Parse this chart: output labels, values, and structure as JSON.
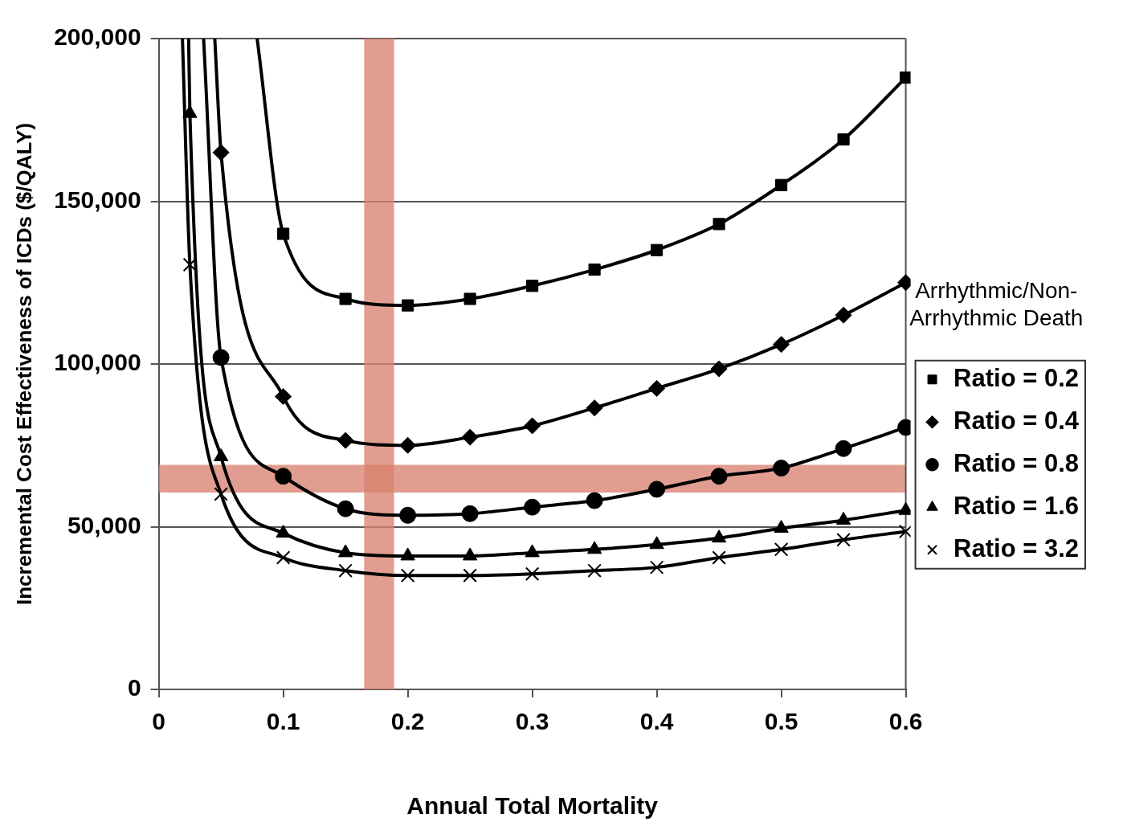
{
  "chart_data": {
    "type": "line",
    "xlabel": "Annual Total Mortality",
    "ylabel": "Incremental Cost Effectiveness of ICDs ($/QALY)",
    "legend_title": "Arrhythmic/Non-Arrhythmic Death",
    "legend": "right",
    "grid": "y",
    "line_style": "solid",
    "xlim": [
      0,
      0.6
    ],
    "xticks": [
      0,
      0.1,
      0.2,
      0.3,
      0.4,
      0.5,
      0.6
    ],
    "ylim": [
      0,
      200000
    ],
    "yticks": [
      0,
      {
        "value": 50000,
        "label": "50,000"
      },
      {
        "value": 100000,
        "label": "100,000"
      },
      {
        "value": 150000,
        "label": "150,000"
      },
      {
        "value": 200000,
        "label": "200,000"
      }
    ],
    "bands": [
      {
        "axis": "x",
        "from": 0.165,
        "to": 0.189,
        "color": "#d9826f"
      },
      {
        "axis": "y",
        "from": 60500,
        "to": 69000,
        "color": "#d9826f"
      }
    ],
    "series": [
      {
        "name": "Ratio = 0.2",
        "color": "#000000",
        "marker": "square",
        "x": [
          0.079,
          0.1,
          0.15,
          0.2,
          0.25,
          0.3,
          0.35,
          0.4,
          0.45,
          0.5,
          0.55,
          0.6
        ],
        "values": [
          200000,
          140000,
          120000,
          118000,
          120000,
          124000,
          129000,
          135000,
          143000,
          155000,
          169000,
          188000
        ]
      },
      {
        "name": "Ratio = 0.4",
        "color": "#000000",
        "marker": "diamond",
        "x": [
          0.045,
          0.05,
          0.1,
          0.15,
          0.2,
          0.25,
          0.3,
          0.35,
          0.4,
          0.45,
          0.5,
          0.55,
          0.6
        ],
        "values": [
          200000,
          165000,
          90000,
          76500,
          75000,
          77500,
          81000,
          86500,
          92500,
          98500,
          106000,
          115000,
          125000
        ]
      },
      {
        "name": "Ratio = 0.8",
        "color": "#000000",
        "marker": "circle",
        "x": [
          0.036,
          0.05,
          0.1,
          0.15,
          0.2,
          0.25,
          0.3,
          0.35,
          0.4,
          0.45,
          0.5,
          0.55,
          0.6
        ],
        "values": [
          200000,
          102000,
          65500,
          55500,
          53500,
          54000,
          56000,
          58000,
          61500,
          65500,
          68000,
          74000,
          80500
        ]
      },
      {
        "name": "Ratio = 1.6",
        "color": "#000000",
        "marker": "triangle",
        "x": [
          0.024,
          0.025,
          0.05,
          0.1,
          0.15,
          0.2,
          0.25,
          0.3,
          0.35,
          0.4,
          0.45,
          0.5,
          0.55,
          0.6
        ],
        "values": [
          200000,
          177000,
          71500,
          48000,
          42000,
          41000,
          41000,
          42000,
          43000,
          44500,
          46500,
          49500,
          52000,
          55000
        ]
      },
      {
        "name": "Ratio = 3.2",
        "color": "#000000",
        "marker": "cross",
        "x": [
          0.019,
          0.025,
          0.05,
          0.1,
          0.15,
          0.2,
          0.25,
          0.3,
          0.35,
          0.4,
          0.45,
          0.5,
          0.55,
          0.6
        ],
        "values": [
          200000,
          130500,
          60000,
          40500,
          36500,
          35000,
          35000,
          35500,
          36500,
          37500,
          40500,
          43000,
          46000,
          48500
        ]
      }
    ]
  }
}
